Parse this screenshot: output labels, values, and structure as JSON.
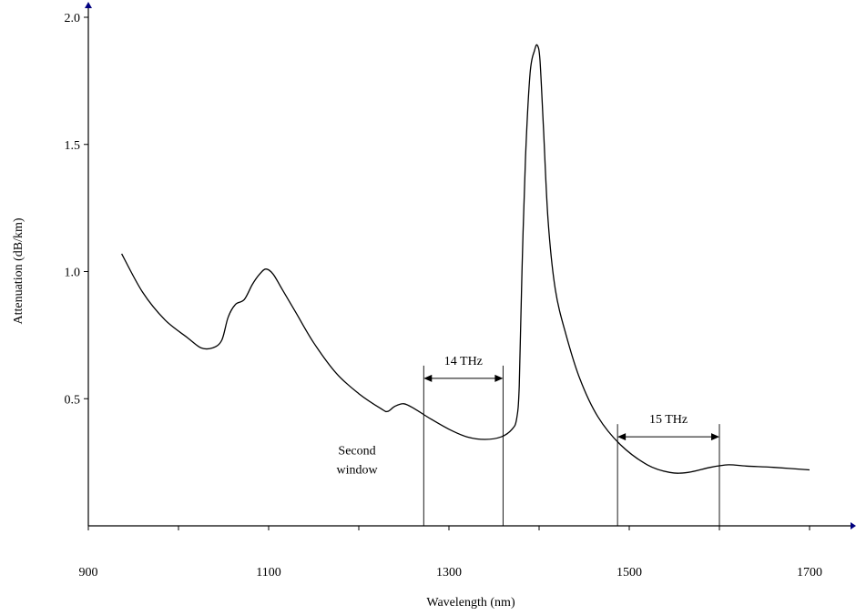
{
  "chart_data": {
    "type": "line",
    "title": "",
    "xlabel": "Wavelength (nm)",
    "ylabel": "Attenuation (dB/km)",
    "xlim": [
      900,
      1700
    ],
    "ylim": [
      0,
      2.0
    ],
    "x_ticks": [
      900,
      1100,
      1300,
      1500,
      1700
    ],
    "x_tick_labels": [
      "900",
      "1100",
      "1300",
      "1500",
      "1700"
    ],
    "y_ticks": [
      0.5,
      1.0,
      1.5,
      2.0
    ],
    "y_tick_labels": [
      "0.5",
      "1.0",
      "1.5",
      "2.0"
    ],
    "grid": false,
    "series": [
      {
        "color": "#000000",
        "points": [
          [
            937,
            1.07
          ],
          [
            960,
            0.92
          ],
          [
            985,
            0.81
          ],
          [
            1010,
            0.74
          ],
          [
            1025,
            0.7
          ],
          [
            1038,
            0.7
          ],
          [
            1048,
            0.73
          ],
          [
            1055,
            0.82
          ],
          [
            1063,
            0.87
          ],
          [
            1073,
            0.89
          ],
          [
            1082,
            0.95
          ],
          [
            1090,
            0.99
          ],
          [
            1097,
            1.01
          ],
          [
            1105,
            0.99
          ],
          [
            1115,
            0.93
          ],
          [
            1130,
            0.84
          ],
          [
            1150,
            0.72
          ],
          [
            1175,
            0.6
          ],
          [
            1200,
            0.52
          ],
          [
            1225,
            0.46
          ],
          [
            1232,
            0.45
          ],
          [
            1240,
            0.47
          ],
          [
            1250,
            0.48
          ],
          [
            1262,
            0.46
          ],
          [
            1280,
            0.42
          ],
          [
            1300,
            0.38
          ],
          [
            1320,
            0.35
          ],
          [
            1340,
            0.34
          ],
          [
            1358,
            0.35
          ],
          [
            1370,
            0.38
          ],
          [
            1375,
            0.42
          ],
          [
            1378,
            0.55
          ],
          [
            1381,
            1.0
          ],
          [
            1385,
            1.45
          ],
          [
            1390,
            1.78
          ],
          [
            1395,
            1.87
          ],
          [
            1398,
            1.89
          ],
          [
            1401,
            1.83
          ],
          [
            1405,
            1.55
          ],
          [
            1410,
            1.2
          ],
          [
            1418,
            0.93
          ],
          [
            1430,
            0.75
          ],
          [
            1445,
            0.58
          ],
          [
            1465,
            0.43
          ],
          [
            1490,
            0.32
          ],
          [
            1520,
            0.24
          ],
          [
            1545,
            0.21
          ],
          [
            1565,
            0.21
          ],
          [
            1590,
            0.23
          ],
          [
            1610,
            0.24
          ],
          [
            1630,
            0.235
          ],
          [
            1660,
            0.23
          ],
          [
            1700,
            0.22
          ]
        ]
      }
    ],
    "annotations": [
      {
        "text": "14 THz",
        "x_start": 1272,
        "x_end": 1360,
        "arrow_y": 0.58
      },
      {
        "text": "15 THz",
        "x_start": 1487,
        "x_end": 1600,
        "arrow_y": 0.35
      },
      {
        "text_lines": [
          "Second",
          "window"
        ],
        "x": 1198,
        "y": 0.28
      }
    ]
  }
}
